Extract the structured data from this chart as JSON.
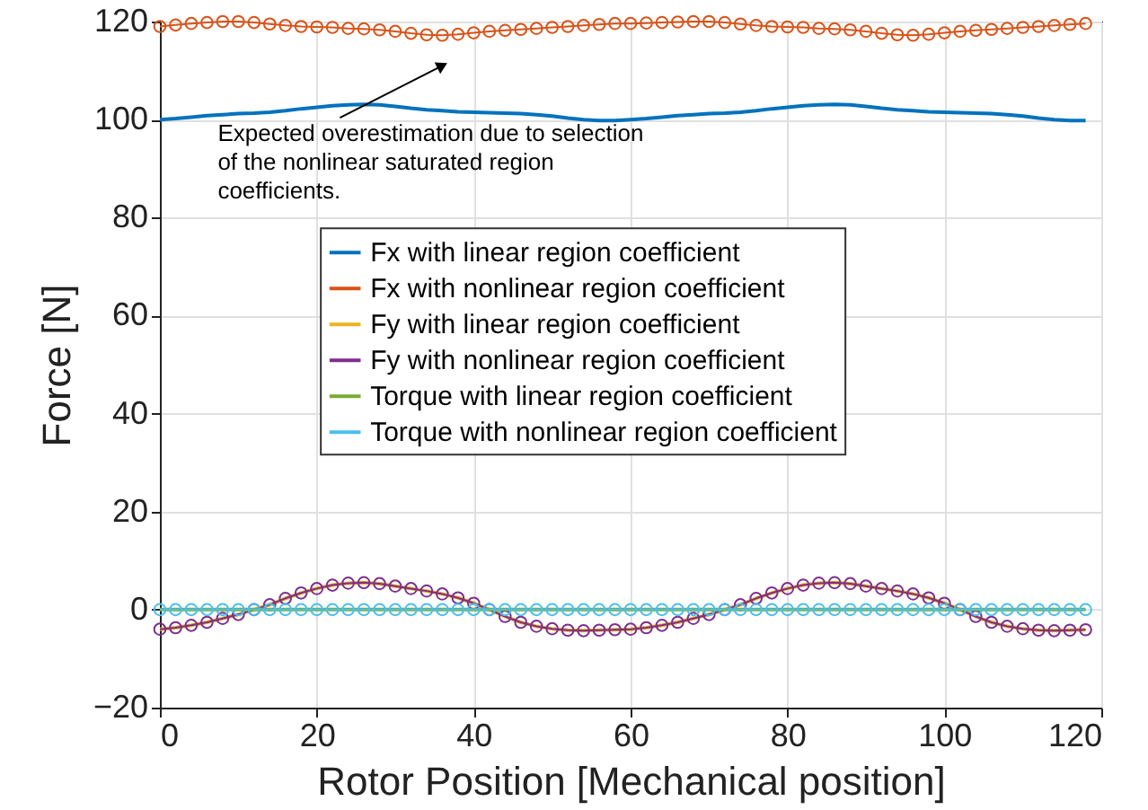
{
  "chart_data": {
    "type": "line",
    "xlabel": "Rotor Position [Mechanical position]",
    "ylabel": "Force [N]",
    "x": [
      0,
      2,
      4,
      6,
      8,
      10,
      12,
      14,
      16,
      18,
      20,
      22,
      24,
      26,
      28,
      30,
      32,
      34,
      36,
      38,
      40,
      42,
      44,
      46,
      48,
      50,
      52,
      54,
      56,
      58,
      60,
      62,
      64,
      66,
      68,
      70,
      72,
      74,
      76,
      78,
      80,
      82,
      84,
      86,
      88,
      90,
      92,
      94,
      96,
      98,
      100,
      102,
      104,
      106,
      108,
      110,
      112,
      114,
      116,
      118
    ],
    "series": [
      {
        "name": "Fx with linear region coefficient",
        "color": "#0072bd",
        "marker": "none",
        "values": [
          100,
          100.2,
          100.5,
          100.8,
          101,
          101.2,
          101.3,
          101.5,
          101.8,
          102.2,
          102.5,
          102.8,
          103,
          103.1,
          103,
          102.7,
          102.3,
          102,
          101.8,
          101.6,
          101.5,
          101.4,
          101.3,
          101.2,
          101,
          100.7,
          100.3,
          100,
          99.8,
          99.8,
          100,
          100.2,
          100.5,
          100.8,
          101,
          101.2,
          101.3,
          101.5,
          101.8,
          102.2,
          102.5,
          102.8,
          103,
          103.1,
          103,
          102.7,
          102.3,
          102,
          101.8,
          101.6,
          101.5,
          101.4,
          101.3,
          101.2,
          101,
          100.7,
          100.3,
          100,
          99.8,
          99.8
        ]
      },
      {
        "name": "Fx with nonlinear region coefficient",
        "color": "#d95319",
        "marker": "circle",
        "values": [
          119,
          119.3,
          119.6,
          119.8,
          120,
          120,
          119.8,
          119.5,
          119.2,
          119,
          118.9,
          118.8,
          118.6,
          118.5,
          118.3,
          118,
          117.6,
          117.3,
          117.2,
          117.4,
          117.7,
          118,
          118.2,
          118.4,
          118.6,
          118.8,
          119,
          119.2,
          119.4,
          119.6,
          119.6,
          119.7,
          119.8,
          119.9,
          120,
          120,
          119.8,
          119.5,
          119.2,
          119,
          118.9,
          118.8,
          118.6,
          118.5,
          118.3,
          118,
          117.6,
          117.3,
          117.2,
          117.4,
          117.7,
          118,
          118.2,
          118.4,
          118.6,
          118.8,
          119,
          119.2,
          119.4,
          119.6
        ]
      },
      {
        "name": "Fy with linear region coefficient",
        "color": "#edb120",
        "marker": "none",
        "values": [
          -4,
          -3.7,
          -3.2,
          -2.6,
          -1.8,
          -1,
          0,
          1,
          2.3,
          3.4,
          4.3,
          5,
          5.4,
          5.5,
          5.3,
          4.8,
          4.3,
          3.8,
          3.2,
          2.4,
          1.3,
          0,
          -1.4,
          -2.6,
          -3.4,
          -3.9,
          -4.2,
          -4.3,
          -4.2,
          -4.1,
          -4,
          -3.7,
          -3.2,
          -2.6,
          -1.8,
          -1,
          0,
          1,
          2.3,
          3.4,
          4.3,
          5,
          5.4,
          5.5,
          5.3,
          4.8,
          4.3,
          3.8,
          3.2,
          2.4,
          1.3,
          0,
          -1.4,
          -2.6,
          -3.4,
          -3.9,
          -4.2,
          -4.3,
          -4.2,
          -4.1
        ]
      },
      {
        "name": "Fy with nonlinear region coefficient",
        "color": "#7e2f8e",
        "marker": "circle",
        "values": [
          -4,
          -3.7,
          -3.2,
          -2.6,
          -1.8,
          -1,
          0,
          1,
          2.3,
          3.4,
          4.3,
          5,
          5.4,
          5.5,
          5.3,
          4.8,
          4.3,
          3.8,
          3.2,
          2.4,
          1.3,
          0,
          -1.4,
          -2.6,
          -3.4,
          -3.9,
          -4.2,
          -4.3,
          -4.2,
          -4.1,
          -4,
          -3.7,
          -3.2,
          -2.6,
          -1.8,
          -1,
          0,
          1,
          2.3,
          3.4,
          4.3,
          5,
          5.4,
          5.5,
          5.3,
          4.8,
          4.3,
          3.8,
          3.2,
          2.4,
          1.3,
          0,
          -1.4,
          -2.6,
          -3.4,
          -3.9,
          -4.2,
          -4.3,
          -4.2,
          -4.1
        ]
      },
      {
        "name": "Torque with linear region coefficient",
        "color": "#77ac30",
        "marker": "none",
        "values": [
          0,
          0,
          0,
          0,
          0,
          0,
          0,
          0,
          0,
          0,
          0,
          0,
          0,
          0,
          0,
          0,
          0,
          0,
          0,
          0,
          0,
          0,
          0,
          0,
          0,
          0,
          0,
          0,
          0,
          0,
          0,
          0,
          0,
          0,
          0,
          0,
          0,
          0,
          0,
          0,
          0,
          0,
          0,
          0,
          0,
          0,
          0,
          0,
          0,
          0,
          0,
          0,
          0,
          0,
          0,
          0,
          0,
          0,
          0,
          0
        ]
      },
      {
        "name": "Torque with nonlinear region coefficient",
        "color": "#4dbeee",
        "marker": "circle",
        "values": [
          0,
          0,
          0,
          0,
          0,
          0,
          0,
          0,
          0,
          0,
          0,
          0,
          0,
          0,
          0,
          0,
          0,
          0,
          0,
          0,
          0,
          0,
          0,
          0,
          0,
          0,
          0,
          0,
          0,
          0,
          0,
          0,
          0,
          0,
          0,
          0,
          0,
          0,
          0,
          0,
          0,
          0,
          0,
          0,
          0,
          0,
          0,
          0,
          0,
          0,
          0,
          0,
          0,
          0,
          0,
          0,
          0,
          0,
          0,
          0
        ]
      }
    ],
    "xlim": [
      0,
      120
    ],
    "xticks": [
      0,
      20,
      40,
      60,
      80,
      100,
      120
    ],
    "ylim": [
      -20,
      120
    ],
    "yticks": [
      -20,
      0,
      20,
      40,
      60,
      80,
      100,
      120
    ],
    "grid": true,
    "legend": "center",
    "annotations": [
      {
        "text": "Expected overestimation due to selection of the nonlinear saturated region coefficients.",
        "x": 36,
        "y": 111
      }
    ]
  }
}
